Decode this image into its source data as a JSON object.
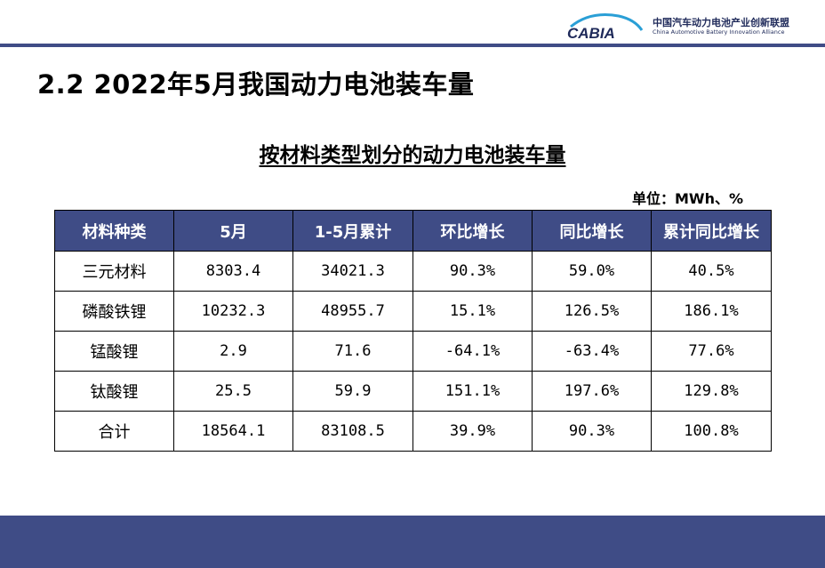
{
  "header": {
    "logo_wordmark": "CABIA",
    "org_name_cn": "中国汽车动力电池产业创新联盟",
    "org_name_en": "China Automotive Battery Innovation Alliance"
  },
  "slide_title": "2.2 2022年5月我国动力电池装车量",
  "table_title": "按材料类型划分的动力电池装车量",
  "unit": "单位：MWh、%",
  "table": {
    "columns": [
      "材料种类",
      "5月",
      "1-5月累计",
      "环比增长",
      "同比增长",
      "累计同比增长"
    ],
    "rows": [
      [
        "三元材料",
        "8303.4",
        "34021.3",
        "90.3%",
        "59.0%",
        "40.5%"
      ],
      [
        "磷酸铁锂",
        "10232.3",
        "48955.7",
        "15.1%",
        "126.5%",
        "186.1%"
      ],
      [
        "锰酸锂",
        "2.9",
        "71.6",
        "-64.1%",
        "-63.4%",
        "77.6%"
      ],
      [
        "钛酸锂",
        "25.5",
        "59.9",
        "151.1%",
        "197.6%",
        "129.8%"
      ],
      [
        "合计",
        "18564.1",
        "83108.5",
        "39.9%",
        "90.3%",
        "100.8%"
      ]
    ]
  },
  "colors": {
    "brand_navy": "#3f4c86",
    "header_text": "#ffffff"
  }
}
